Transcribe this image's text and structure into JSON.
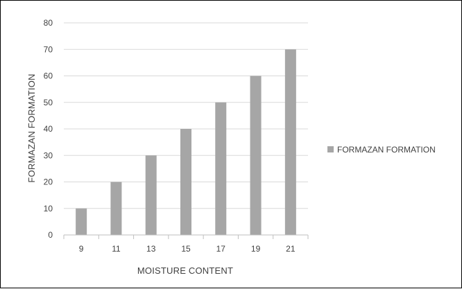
{
  "chart_data": {
    "type": "bar",
    "categories": [
      "9",
      "11",
      "13",
      "15",
      "17",
      "19",
      "21"
    ],
    "series": [
      {
        "name": "FORMAZAN FORMATION",
        "values": [
          10,
          20,
          30,
          40,
          50,
          60,
          70
        ]
      }
    ],
    "title": "",
    "xlabel": "MOISTURE CONTENT",
    "ylabel": "FORMAZAN FORMATION",
    "ylim": [
      0,
      80
    ],
    "yticks": [
      "0",
      "10",
      "20",
      "30",
      "40",
      "50",
      "60",
      "70",
      "80"
    ],
    "grid": "horizontal",
    "legend": "right",
    "colors": {
      "bar": "#a6a6a6",
      "grid": "#d9d9d9",
      "axis": "#bfbfbf",
      "text": "#404040"
    }
  }
}
